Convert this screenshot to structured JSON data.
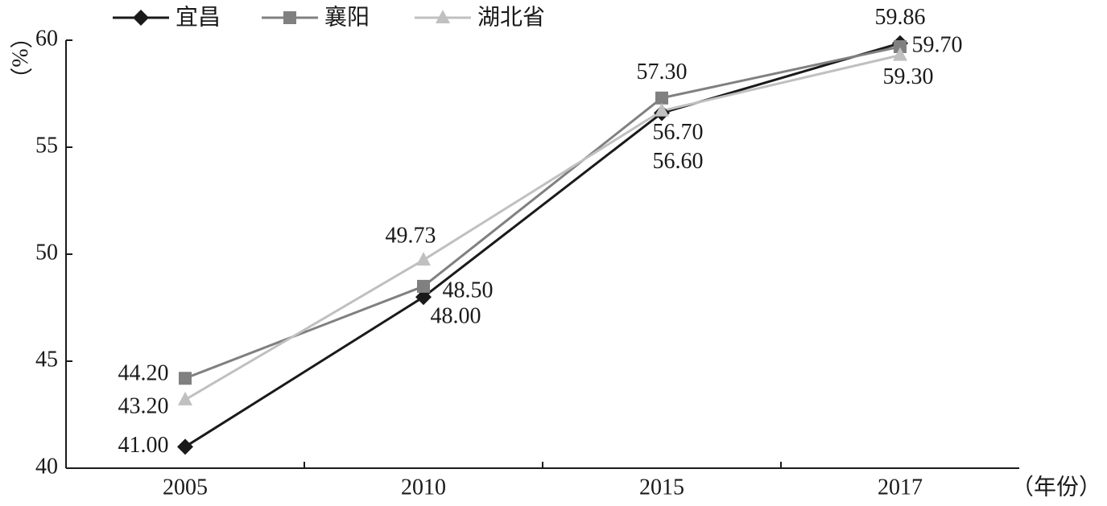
{
  "chart_data": {
    "type": "line",
    "y_label": "（%）",
    "x_label": "（年份）",
    "categories": [
      "2005",
      "2010",
      "2015",
      "2017"
    ],
    "series": [
      {
        "name": "宜昌",
        "color": "#1a1a1a",
        "marker": "diamond",
        "values": [
          41.0,
          48.0,
          56.6,
          59.86
        ],
        "value_labels": [
          "41.00",
          "48.00",
          "56.60",
          "59.86"
        ]
      },
      {
        "name": "襄阳",
        "color": "#808080",
        "marker": "square",
        "values": [
          44.2,
          48.5,
          57.3,
          59.7
        ],
        "value_labels": [
          "44.20",
          "48.50",
          "57.30",
          "59.70"
        ]
      },
      {
        "name": "湖北省",
        "color": "#c0c0c0",
        "marker": "triangle",
        "values": [
          43.2,
          49.73,
          56.7,
          59.3
        ],
        "value_labels": [
          "43.20",
          "49.73",
          "56.70",
          "59.30"
        ]
      }
    ],
    "ylim": [
      40,
      60
    ],
    "yticks": [
      40,
      45,
      50,
      55,
      60
    ]
  }
}
